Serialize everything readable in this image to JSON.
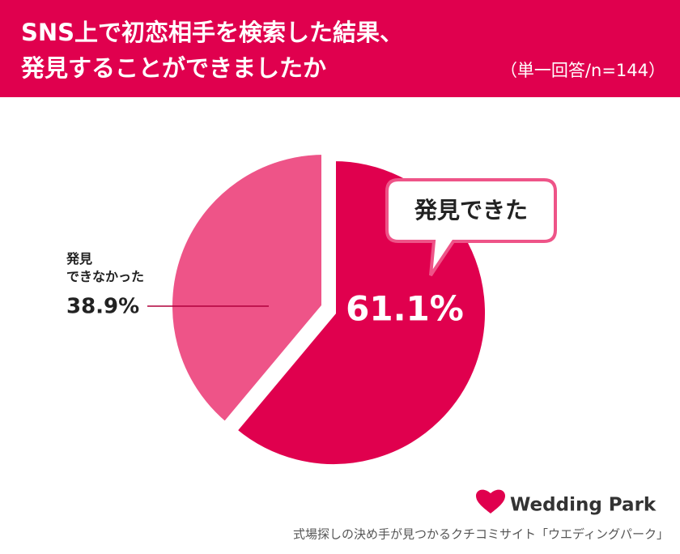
{
  "chart_data": {
    "type": "pie",
    "title": [
      "SNS上で初恋相手を検索した結果、",
      "発見することができましたか"
    ],
    "subtitle": "（単一回答/n=144）",
    "categories": [
      "発見できた",
      "発見\nできなかった"
    ],
    "values": [
      61.1,
      38.9
    ],
    "value_labels": [
      "61.1%",
      "38.9%"
    ],
    "colors": [
      "#e0004e",
      "#ee5488"
    ]
  },
  "footer": {
    "brand": "Wedding Park",
    "tagline": "式場探しの決め手が見つかるクチコミサイト「ウエディングパーク」"
  }
}
